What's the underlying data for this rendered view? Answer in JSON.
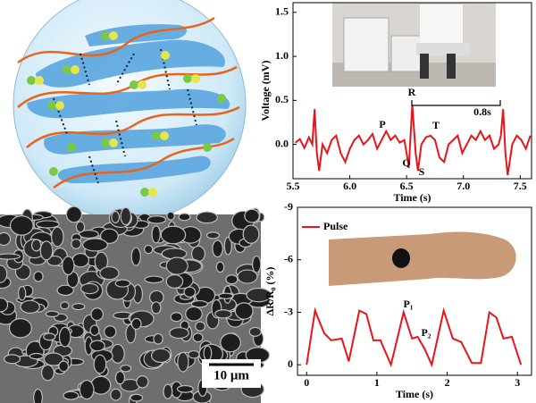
{
  "chart_data": [
    {
      "type": "line",
      "xlabel": "Time (s)",
      "ylabel": "Voltage (mV)",
      "xlim": [
        5.5,
        7.6
      ],
      "ylim": [
        -0.39,
        1.61
      ],
      "xticks": [
        5.5,
        {
          "value": 6.0,
          "label": "6.0"
        },
        6.5,
        {
          "value": 7.0,
          "label": "7.0"
        },
        7.5
      ],
      "yticks": [
        {
          "value": 0.0,
          "label": "0.0"
        },
        0.5,
        {
          "value": 1.0,
          "label": "1.0"
        },
        1.5
      ],
      "x": [
        5.52,
        5.56,
        5.6,
        5.64,
        5.67,
        5.69,
        5.71,
        5.73,
        5.76,
        5.8,
        5.84,
        5.88,
        5.92,
        5.96,
        6.0,
        6.04,
        6.08,
        6.12,
        6.16,
        6.2,
        6.24,
        6.28,
        6.32,
        6.36,
        6.4,
        6.44,
        6.48,
        6.52,
        6.55,
        6.58,
        6.6,
        6.63,
        6.67,
        6.71,
        6.75,
        6.79,
        6.83,
        6.87,
        6.91,
        6.95,
        6.99,
        7.03,
        7.07,
        7.11,
        7.15,
        7.19,
        7.23,
        7.27,
        7.31,
        7.33,
        7.35,
        7.37,
        7.39,
        7.43,
        7.47,
        7.51,
        7.55,
        7.59
      ],
      "series": [
        {
          "color": "#e8141b",
          "values": [
            0.02,
            0.06,
            -0.04,
            0.08,
            0.0,
            0.4,
            -0.1,
            -0.3,
            0.0,
            -0.1,
            0.05,
            0.1,
            -0.1,
            -0.2,
            -0.05,
            0.05,
            0.1,
            0.0,
            0.05,
            0.12,
            -0.05,
            0.05,
            0.15,
            0.05,
            0.1,
            0.02,
            0.05,
            -0.25,
            0.45,
            -0.1,
            -0.3,
            0.0,
            0.08,
            0.1,
            0.05,
            -0.15,
            -0.2,
            0.0,
            0.05,
            0.1,
            -0.1,
            0.0,
            0.1,
            0.05,
            0.15,
            0.05,
            0.1,
            -0.05,
            0.0,
            0.1,
            0.4,
            -0.1,
            -0.35,
            0.0,
            0.1,
            0.05,
            -0.05,
            0.1
          ]
        }
      ],
      "annotations": [
        "P",
        "Q",
        "R",
        "S",
        "T",
        "0.8s"
      ]
    },
    {
      "type": "line",
      "xlabel": "Time (s)",
      "ylabel": "ΔR/R₀ (%)",
      "xlim": [
        -0.13,
        3.2
      ],
      "ylim": [
        0.6,
        -9
      ],
      "xticks": [
        0,
        1,
        2,
        3
      ],
      "yticks": [
        0,
        -3,
        -6,
        -9
      ],
      "x": [
        0,
        0.12,
        0.25,
        0.35,
        0.5,
        0.6,
        0.75,
        0.85,
        0.95,
        1.05,
        1.2,
        1.38,
        1.5,
        1.58,
        1.68,
        1.78,
        1.95,
        2.08,
        2.2,
        2.35,
        2.48,
        2.6,
        2.7,
        2.8,
        2.92,
        3.05
      ],
      "series": [
        {
          "name": "Pulse",
          "color": "#e8141b",
          "values": [
            0,
            -3.1,
            -1.8,
            -1.4,
            -1.5,
            -0.2,
            -3.1,
            -2.9,
            -1.4,
            -1.4,
            0.0,
            -3.0,
            -1.5,
            -1.6,
            -0.9,
            0.0,
            -3.1,
            -1.5,
            -1.3,
            -0.1,
            -0.1,
            -3.0,
            -2.7,
            -1.5,
            -1.6,
            0.0
          ]
        }
      ],
      "legend": "upper-left",
      "annotations": [
        "P₁",
        "P₂"
      ]
    }
  ],
  "sem_image": {
    "scale_bar": "10 μm"
  }
}
